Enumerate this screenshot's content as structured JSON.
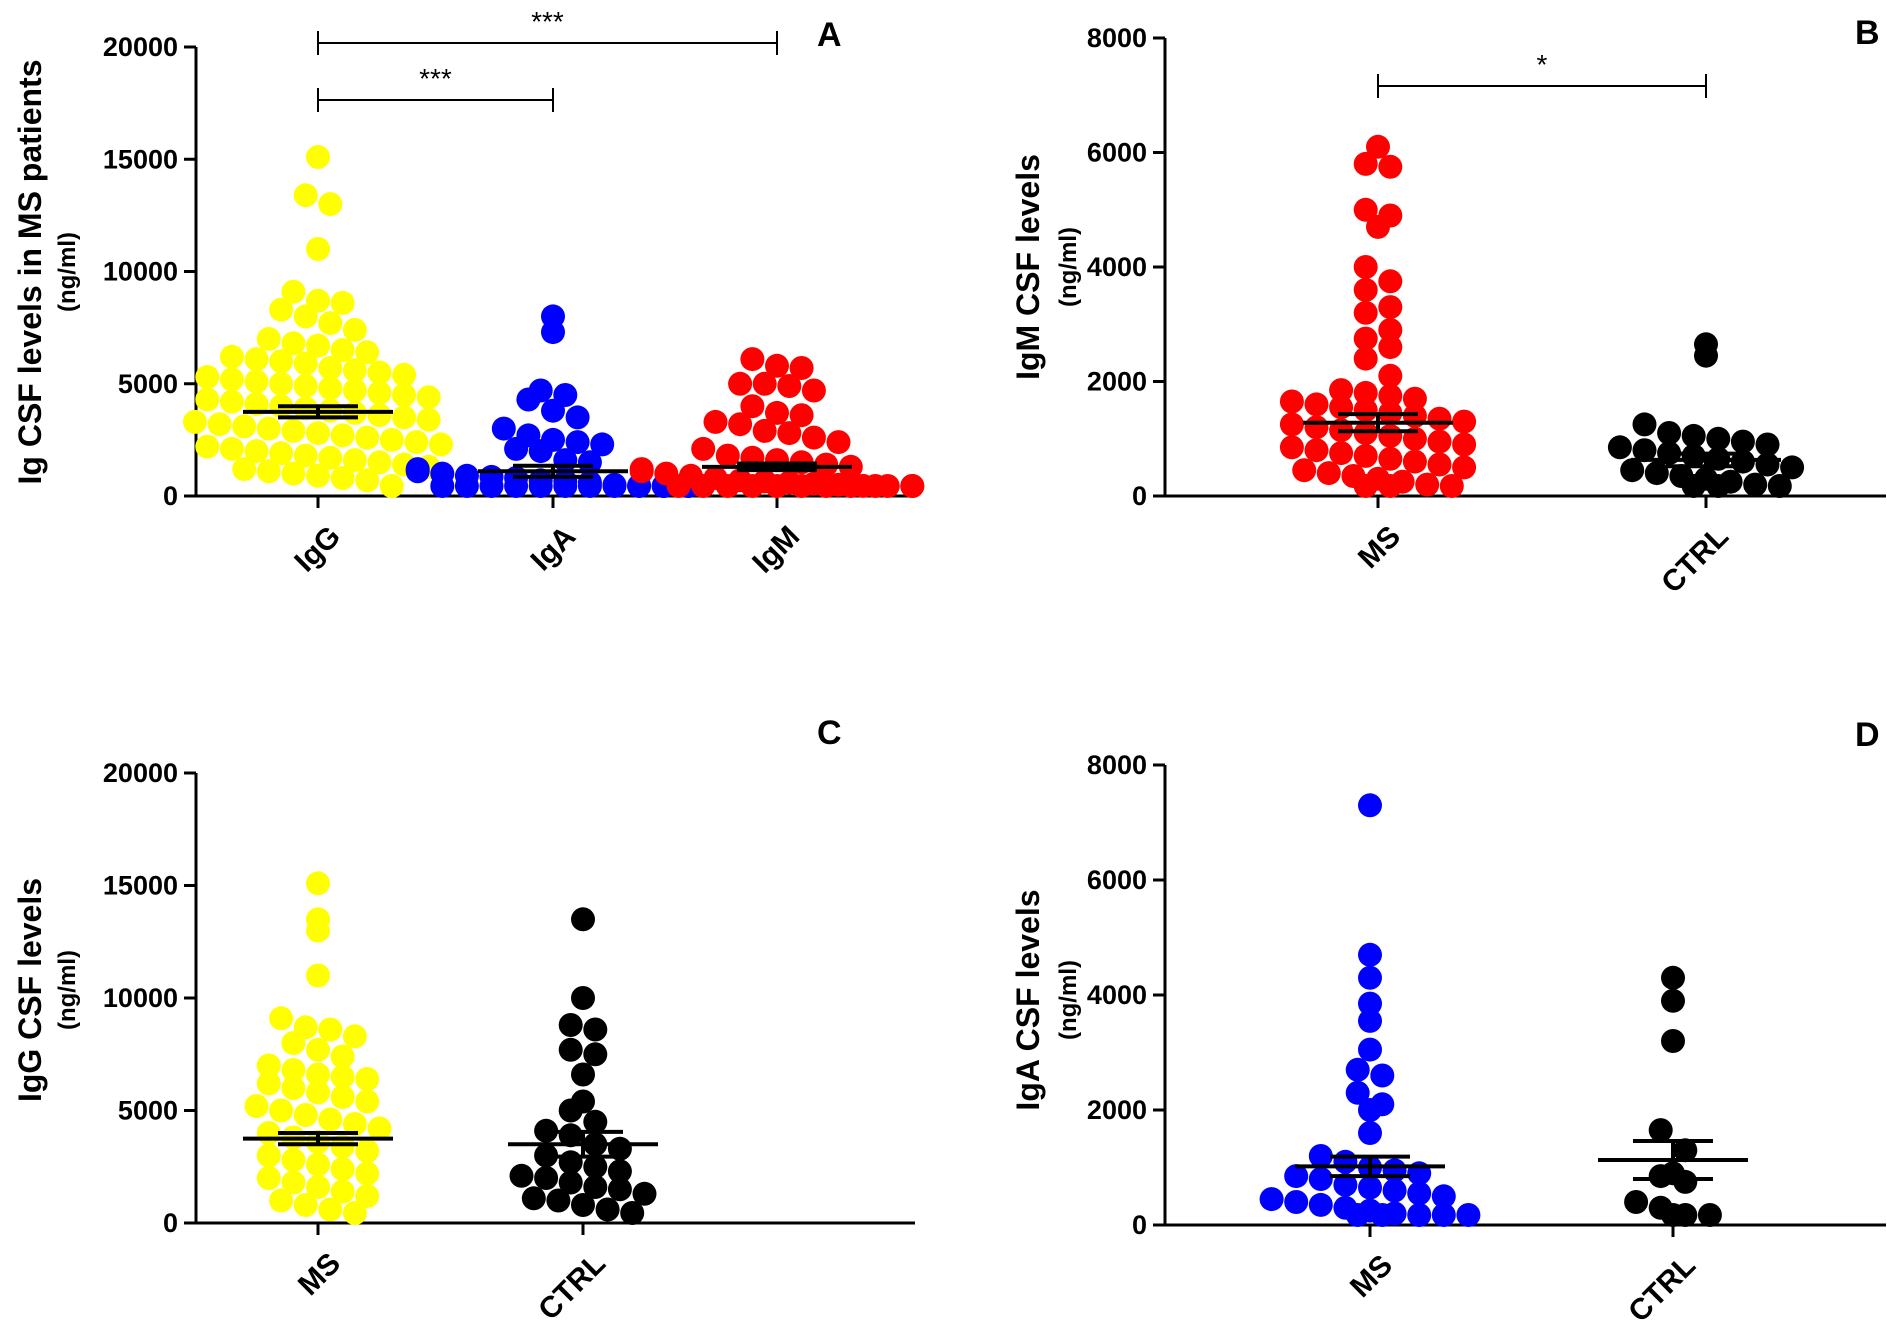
{
  "chart_data": [
    {
      "panel": "A",
      "type": "scatter",
      "ylabel": "Ig CSF levels in MS patients",
      "yunit": "(ng/ml)",
      "ylim": [
        0,
        20000
      ],
      "yticks": [
        "0",
        "5000",
        "10000",
        "15000",
        "20000"
      ],
      "categories": [
        "IgG",
        "IgA",
        "IgM"
      ],
      "colors": [
        "#ffff00",
        "#0000ff",
        "#ff0000"
      ],
      "series": [
        {
          "name": "IgG",
          "mean": 3750,
          "sem": 250,
          "values": [
            15100,
            13400,
            13000,
            11000,
            9100,
            8700,
            8600,
            8300,
            8000,
            7700,
            7400,
            7000,
            6800,
            6700,
            6500,
            6400,
            6200,
            6100,
            6000,
            5900,
            5700,
            5600,
            5500,
            5400,
            5300,
            5200,
            5100,
            5000,
            4900,
            4800,
            4700,
            4600,
            4500,
            4400,
            4300,
            4200,
            4100,
            4000,
            3900,
            3800,
            3700,
            3600,
            3500,
            3400,
            3300,
            3200,
            3100,
            3000,
            2900,
            2800,
            2700,
            2600,
            2500,
            2400,
            2300,
            2200,
            2100,
            2000,
            1900,
            1800,
            1700,
            1600,
            1500,
            1400,
            1300,
            1200,
            1100,
            1000,
            900,
            800,
            700,
            300
          ]
        },
        {
          "name": "IgA",
          "mean": 1100,
          "sem": 250,
          "values": [
            8000,
            7300,
            4700,
            4500,
            4300,
            3800,
            3500,
            3000,
            2700,
            2500,
            2400,
            2300,
            2100,
            2000,
            1600,
            1500,
            1200,
            1100,
            1000,
            900,
            850,
            800,
            700,
            650,
            600,
            500,
            450,
            400,
            350,
            300,
            250,
            200,
            200,
            150,
            150,
            100,
            100,
            100,
            80,
            60
          ]
        },
        {
          "name": "IgM",
          "mean": 1300,
          "sem": 150,
          "values": [
            6100,
            5800,
            5700,
            5000,
            5000,
            4900,
            4700,
            4000,
            3700,
            3600,
            3300,
            3200,
            2900,
            2800,
            2600,
            2400,
            2100,
            1800,
            1700,
            1600,
            1500,
            1400,
            1300,
            1200,
            1100,
            1000,
            900,
            800,
            700,
            650,
            600,
            550,
            500,
            450,
            400,
            350,
            300,
            250,
            200,
            150,
            100,
            100,
            80,
            60,
            50,
            30
          ]
        }
      ],
      "significance": [
        {
          "from": "IgG",
          "to": "IgA",
          "label": "***"
        },
        {
          "from": "IgG",
          "to": "IgM",
          "label": "***"
        }
      ]
    },
    {
      "panel": "B",
      "type": "scatter",
      "ylabel": "IgM CSF levels",
      "yunit": "(ng/ml)",
      "ylim": [
        0,
        8000
      ],
      "yticks": [
        "0",
        "2000",
        "4000",
        "6000",
        "8000"
      ],
      "categories": [
        "MS",
        "CTRL"
      ],
      "colors": [
        "#ff0000",
        "#000000"
      ],
      "series": [
        {
          "name": "MS",
          "mean": 1280,
          "sem": 150,
          "values": [
            6100,
            5800,
            5750,
            5000,
            4900,
            4700,
            4000,
            3750,
            3600,
            3300,
            3200,
            2900,
            2750,
            2600,
            2400,
            2100,
            1850,
            1800,
            1750,
            1700,
            1650,
            1600,
            1550,
            1500,
            1450,
            1400,
            1350,
            1300,
            1250,
            1200,
            1150,
            1100,
            1050,
            1000,
            950,
            900,
            850,
            800,
            750,
            700,
            650,
            600,
            550,
            500,
            450,
            400,
            350,
            300,
            250,
            200,
            150,
            100,
            60
          ]
        },
        {
          "name": "CTRL",
          "mean": 630,
          "sem": 110,
          "values": [
            2650,
            2450,
            1250,
            1100,
            1050,
            1000,
            950,
            900,
            850,
            800,
            750,
            700,
            650,
            600,
            550,
            500,
            450,
            400,
            350,
            300,
            250,
            200,
            150,
            100,
            80
          ]
        }
      ],
      "significance": [
        {
          "from": "MS",
          "to": "CTRL",
          "label": "*"
        }
      ]
    },
    {
      "panel": "C",
      "type": "scatter",
      "ylabel": "IgG CSF levels",
      "yunit": "(ng/ml)",
      "ylim": [
        0,
        20000
      ],
      "yticks": [
        "0",
        "5000",
        "10000",
        "15000",
        "20000"
      ],
      "categories": [
        "MS",
        "CTRL"
      ],
      "colors": [
        "#ffff00",
        "#000000"
      ],
      "series": [
        {
          "name": "MS",
          "mean": 3750,
          "sem": 250,
          "values": [
            15100,
            13500,
            13000,
            11000,
            9100,
            8700,
            8600,
            8300,
            8000,
            7700,
            7400,
            7000,
            6800,
            6600,
            6500,
            6400,
            6200,
            6000,
            5800,
            5600,
            5400,
            5200,
            5000,
            4800,
            4600,
            4400,
            4200,
            4000,
            3800,
            3600,
            3400,
            3200,
            3000,
            2800,
            2600,
            2400,
            2200,
            2000,
            1800,
            1600,
            1400,
            1200,
            1000,
            800,
            600,
            300
          ]
        },
        {
          "name": "CTRL",
          "mean": 3500,
          "sem": 550,
          "values": [
            13500,
            10000,
            8800,
            8600,
            7700,
            7500,
            6600,
            5400,
            5000,
            4500,
            4100,
            3900,
            3500,
            3300,
            3000,
            2700,
            2500,
            2300,
            2100,
            2000,
            1800,
            1600,
            1500,
            1300,
            1100,
            1000,
            800,
            600,
            400
          ]
        }
      ]
    },
    {
      "panel": "D",
      "type": "scatter",
      "ylabel": "IgA CSF levels",
      "yunit": "(ng/ml)",
      "ylim": [
        0,
        8000
      ],
      "yticks": [
        "0",
        "2000",
        "4000",
        "6000",
        "8000"
      ],
      "categories": [
        "MS",
        "CTRL"
      ],
      "colors": [
        "#0000ff",
        "#000000"
      ],
      "series": [
        {
          "name": "MS",
          "mean": 1020,
          "sem": 170,
          "values": [
            7300,
            4700,
            4300,
            3850,
            3550,
            3050,
            2700,
            2600,
            2300,
            2100,
            2000,
            1600,
            1200,
            1100,
            1000,
            950,
            900,
            850,
            800,
            700,
            650,
            600,
            550,
            500,
            450,
            400,
            350,
            300,
            250,
            200,
            150,
            120,
            100,
            80,
            60
          ]
        },
        {
          "name": "CTRL",
          "mean": 1130,
          "sem": 330,
          "values": [
            4300,
            3900,
            3200,
            1650,
            1300,
            900,
            850,
            750,
            400,
            300,
            150,
            100,
            80
          ]
        }
      ]
    }
  ]
}
